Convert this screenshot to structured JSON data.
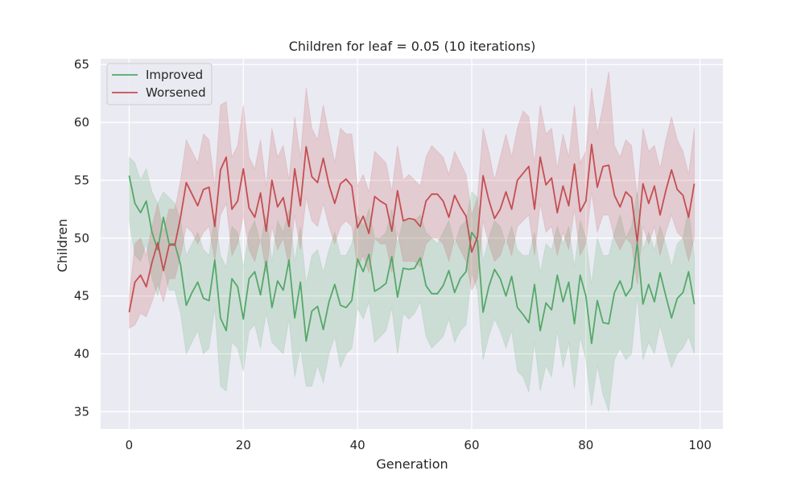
{
  "chart_data": {
    "type": "line",
    "title": "Children for leaf = 0.05 (10 iterations)",
    "xlabel": "Generation",
    "ylabel": "Children",
    "xlim": [
      -5,
      104
    ],
    "ylim": [
      33.5,
      65.5
    ],
    "xticks": [
      0,
      20,
      40,
      60,
      80,
      100
    ],
    "yticks": [
      35,
      40,
      45,
      50,
      55,
      60,
      65
    ],
    "grid": true,
    "legend_position": "top-left",
    "series": [
      {
        "name": "Improved",
        "color": "#55a868",
        "x": [
          0,
          1,
          2,
          3,
          4,
          5,
          6,
          7,
          8,
          9,
          10,
          11,
          12,
          13,
          14,
          15,
          16,
          17,
          18,
          19,
          20,
          21,
          22,
          23,
          24,
          25,
          26,
          27,
          28,
          29,
          30,
          31,
          32,
          33,
          34,
          35,
          36,
          37,
          38,
          39,
          40,
          41,
          42,
          43,
          44,
          45,
          46,
          47,
          48,
          49,
          50,
          51,
          52,
          53,
          54,
          55,
          56,
          57,
          58,
          59,
          60,
          61,
          62,
          63,
          64,
          65,
          66,
          67,
          68,
          69,
          70,
          71,
          72,
          73,
          74,
          75,
          76,
          77,
          78,
          79,
          80,
          81,
          82,
          83,
          84,
          85,
          86,
          87,
          88,
          89,
          90,
          91,
          92,
          93,
          94,
          95,
          96,
          97,
          98,
          99
        ],
        "y": [
          55.4,
          53.0,
          52.2,
          53.2,
          50.5,
          49.0,
          51.8,
          49.5,
          49.5,
          47.7,
          44.2,
          45.3,
          46.2,
          44.8,
          44.6,
          48.1,
          43.1,
          42.0,
          46.5,
          45.8,
          43.0,
          46.5,
          47.1,
          45.1,
          48.0,
          44.0,
          46.3,
          45.5,
          48.1,
          43.1,
          46.2,
          41.1,
          43.7,
          44.1,
          42.1,
          44.5,
          46.0,
          44.2,
          44.0,
          44.6,
          48.2,
          47.1,
          48.6,
          45.4,
          45.7,
          46.1,
          48.4,
          44.9,
          47.4,
          47.3,
          47.4,
          48.3,
          45.9,
          45.2,
          45.2,
          45.9,
          47.2,
          45.3,
          46.5,
          47.1,
          50.5,
          49.8,
          43.6,
          45.8,
          47.3,
          46.5,
          45.0,
          46.7,
          44.0,
          43.4,
          42.7,
          46.0,
          42.0,
          44.4,
          43.8,
          46.8,
          44.5,
          46.2,
          42.6,
          46.8,
          45.0,
          40.9,
          44.6,
          42.7,
          42.6,
          45.3,
          46.3,
          45.0,
          45.7,
          49.6,
          44.3,
          46.0,
          44.5,
          47.0,
          45.0,
          43.1,
          44.8,
          45.3,
          47.1,
          44.3
        ],
        "lower": [
          51.5,
          48.5,
          48.0,
          49.5,
          46.5,
          45.0,
          47.5,
          45.5,
          45.5,
          43.5,
          40.0,
          41.0,
          42.0,
          40.0,
          40.5,
          44.0,
          37.2,
          36.8,
          41.0,
          40.5,
          38.5,
          42.0,
          42.5,
          40.5,
          43.5,
          41.0,
          40.5,
          40.0,
          43.0,
          38.0,
          40.5,
          37.2,
          37.2,
          39.0,
          37.5,
          40.0,
          41.5,
          38.8,
          40.0,
          40.5,
          44.0,
          43.0,
          44.5,
          41.0,
          41.5,
          42.0,
          44.0,
          40.0,
          43.5,
          43.0,
          43.5,
          44.5,
          41.5,
          40.5,
          41.0,
          41.5,
          43.0,
          41.0,
          42.0,
          42.5,
          47.0,
          45.5,
          39.5,
          41.5,
          43.0,
          42.0,
          40.5,
          42.0,
          38.5,
          38.0,
          36.7,
          41.0,
          36.8,
          39.0,
          38.0,
          42.0,
          38.8,
          41.0,
          37.0,
          41.5,
          39.5,
          35.5,
          39.0,
          36.5,
          35.0,
          39.5,
          40.5,
          39.5,
          40.0,
          45.0,
          39.5,
          41.0,
          40.0,
          42.5,
          40.5,
          38.8,
          40.0,
          40.5,
          41.5,
          40.0
        ],
        "upper": [
          57.0,
          56.5,
          55.0,
          56.0,
          54.0,
          53.0,
          54.0,
          53.5,
          53.0,
          51.5,
          48.5,
          49.5,
          50.5,
          49.0,
          48.5,
          52.0,
          48.5,
          47.5,
          51.0,
          50.5,
          47.5,
          50.5,
          51.5,
          49.5,
          52.0,
          48.0,
          51.5,
          50.5,
          52.5,
          48.0,
          51.0,
          46.0,
          48.5,
          49.0,
          47.0,
          49.0,
          50.5,
          48.5,
          48.5,
          49.5,
          52.0,
          51.0,
          52.5,
          50.0,
          50.0,
          50.5,
          52.5,
          49.5,
          51.5,
          51.5,
          51.5,
          52.0,
          50.5,
          50.0,
          49.5,
          50.5,
          51.5,
          49.5,
          51.0,
          51.5,
          54.0,
          53.5,
          48.0,
          50.0,
          51.5,
          51.0,
          49.5,
          51.0,
          49.0,
          48.5,
          48.5,
          50.5,
          47.0,
          49.5,
          49.0,
          51.0,
          49.5,
          51.0,
          47.5,
          51.5,
          50.0,
          46.0,
          50.0,
          48.5,
          48.5,
          50.5,
          52.0,
          50.0,
          51.0,
          54.0,
          49.0,
          50.5,
          49.0,
          51.0,
          49.5,
          47.5,
          49.5,
          50.0,
          52.5,
          48.5
        ]
      },
      {
        "name": "Worsened",
        "color": "#c44e52",
        "x": [
          0,
          1,
          2,
          3,
          4,
          5,
          6,
          7,
          8,
          9,
          10,
          11,
          12,
          13,
          14,
          15,
          16,
          17,
          18,
          19,
          20,
          21,
          22,
          23,
          24,
          25,
          26,
          27,
          28,
          29,
          30,
          31,
          32,
          33,
          34,
          35,
          36,
          37,
          38,
          39,
          40,
          41,
          42,
          43,
          44,
          45,
          46,
          47,
          48,
          49,
          50,
          51,
          52,
          53,
          54,
          55,
          56,
          57,
          58,
          59,
          60,
          61,
          62,
          63,
          64,
          65,
          66,
          67,
          68,
          69,
          70,
          71,
          72,
          73,
          74,
          75,
          76,
          77,
          78,
          79,
          80,
          81,
          82,
          83,
          84,
          85,
          86,
          87,
          88,
          89,
          90,
          91,
          92,
          93,
          94,
          95,
          96,
          97,
          98,
          99
        ],
        "y": [
          43.6,
          46.2,
          46.8,
          45.8,
          47.9,
          49.6,
          47.2,
          49.4,
          49.4,
          51.8,
          54.8,
          53.8,
          52.8,
          54.2,
          54.4,
          51.0,
          55.9,
          57.0,
          52.5,
          53.2,
          56.0,
          52.6,
          51.8,
          53.9,
          50.6,
          55.0,
          52.7,
          53.5,
          51.0,
          56.0,
          52.8,
          57.9,
          55.3,
          54.8,
          56.9,
          54.6,
          53.0,
          54.7,
          55.1,
          54.5,
          50.9,
          51.9,
          50.4,
          53.6,
          53.2,
          52.9,
          50.6,
          54.1,
          51.5,
          51.7,
          51.6,
          51.0,
          53.2,
          53.8,
          53.8,
          53.2,
          51.8,
          53.7,
          52.7,
          51.9,
          48.8,
          50.1,
          55.4,
          53.3,
          51.7,
          52.5,
          54.0,
          52.5,
          55.0,
          55.6,
          56.2,
          52.5,
          57.0,
          54.6,
          55.2,
          52.2,
          54.5,
          52.8,
          56.4,
          52.3,
          53.2,
          58.1,
          54.4,
          56.2,
          56.3,
          53.7,
          52.7,
          54.0,
          53.5,
          49.7,
          54.7,
          53.0,
          54.5,
          52.0,
          54.1,
          55.9,
          54.2,
          53.7,
          51.8,
          54.7
        ],
        "lower": [
          42.2,
          42.5,
          43.5,
          43.2,
          44.5,
          46.0,
          44.5,
          46.5,
          46.5,
          48.5,
          51.0,
          50.5,
          49.5,
          50.5,
          51.0,
          48.0,
          52.0,
          53.0,
          48.5,
          49.5,
          52.0,
          49.0,
          48.0,
          50.0,
          47.0,
          51.0,
          49.0,
          50.0,
          47.5,
          52.0,
          49.0,
          53.5,
          51.5,
          51.0,
          53.0,
          51.0,
          49.5,
          51.0,
          51.5,
          51.0,
          47.5,
          48.5,
          47.0,
          50.0,
          49.5,
          49.5,
          47.0,
          50.5,
          48.0,
          48.0,
          48.0,
          47.5,
          49.5,
          50.0,
          50.0,
          49.5,
          48.0,
          50.0,
          49.0,
          48.0,
          45.5,
          46.5,
          51.5,
          49.5,
          48.0,
          48.5,
          50.0,
          48.5,
          51.0,
          51.5,
          52.0,
          48.5,
          53.0,
          50.5,
          51.0,
          48.5,
          50.5,
          49.0,
          52.5,
          48.5,
          49.5,
          54.0,
          50.5,
          52.0,
          52.0,
          50.0,
          49.0,
          50.0,
          49.5,
          46.0,
          51.0,
          49.5,
          51.0,
          48.5,
          50.5,
          52.0,
          50.5,
          50.0,
          48.0,
          50.0
        ],
        "upper": [
          45.0,
          49.5,
          50.0,
          48.5,
          51.0,
          53.0,
          50.5,
          52.5,
          52.5,
          55.0,
          58.5,
          57.5,
          56.5,
          59.0,
          58.5,
          54.5,
          61.5,
          61.8,
          57.0,
          58.0,
          61.5,
          57.0,
          56.0,
          58.5,
          54.5,
          59.5,
          57.0,
          58.0,
          55.0,
          60.5,
          57.0,
          63.0,
          59.5,
          58.5,
          61.5,
          59.0,
          56.5,
          59.5,
          59.0,
          59.0,
          54.5,
          55.5,
          54.0,
          57.5,
          57.0,
          56.5,
          54.0,
          58.0,
          55.0,
          55.5,
          55.0,
          54.5,
          57.0,
          58.0,
          57.5,
          57.0,
          55.5,
          57.5,
          56.5,
          55.5,
          52.0,
          53.5,
          59.5,
          57.5,
          55.0,
          57.0,
          59.0,
          57.0,
          59.5,
          61.0,
          60.5,
          56.5,
          61.5,
          59.0,
          59.5,
          56.0,
          59.0,
          57.0,
          61.5,
          56.5,
          57.5,
          63.0,
          59.0,
          61.5,
          64.4,
          58.0,
          57.0,
          58.5,
          58.0,
          53.5,
          59.5,
          57.5,
          58.0,
          56.0,
          58.5,
          60.5,
          58.5,
          57.5,
          55.5,
          59.5
        ]
      }
    ]
  }
}
